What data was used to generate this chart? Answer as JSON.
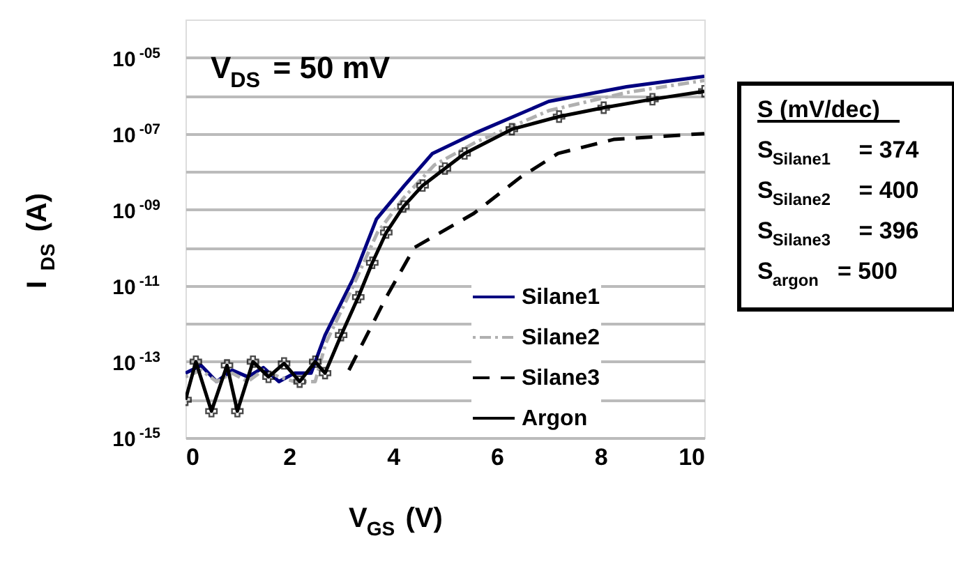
{
  "chart_data": {
    "type": "line",
    "xlabel": "V$_{GS}$ (V)",
    "ylabel": "I$_{DS}$ (A)",
    "log": "y",
    "grid": "y",
    "legend": "bottom right",
    "xlim": [
      0,
      10
    ],
    "xticks": [
      0,
      2,
      4,
      6,
      8,
      10
    ],
    "ylim": [
      1e-15,
      0.0001
    ],
    "yticks": [
      {
        "value": 1e-15,
        "label": "10$^{-15}$"
      },
      {
        "value": 1e-14,
        "label": null
      },
      {
        "value": 1e-13,
        "label": "10$^{-13}$"
      },
      {
        "value": 1e-12,
        "label": null
      },
      {
        "value": 1e-11,
        "label": "10$^{-11}$"
      },
      {
        "value": 1e-10,
        "label": null
      },
      {
        "value": 1e-09,
        "label": "10$^{-09}$"
      },
      {
        "value": 1e-08,
        "label": null
      },
      {
        "value": 1e-07,
        "label": "10$^{-07}$"
      },
      {
        "value": 1e-06,
        "label": null
      },
      {
        "value": 1e-05,
        "label": "10$^{-05}$"
      }
    ],
    "series": [
      {
        "name": "Silane1",
        "color": "#000080",
        "line_style": "solid",
        "marker": "none",
        "x": [
          0,
          0.3,
          0.6,
          0.9,
          1.2,
          1.5,
          1.8,
          2.1,
          2.42,
          2.69,
          3.23,
          3.68,
          4.22,
          4.76,
          5.56,
          7.0,
          8.5,
          10
        ],
        "values": [
          5e-14,
          8e-14,
          3e-14,
          6e-14,
          4e-14,
          7e-14,
          3e-14,
          5e-14,
          5e-14,
          5e-13,
          1.5e-11,
          5.6e-10,
          4.3e-09,
          3e-08,
          1e-07,
          7e-07,
          1.7e-06,
          3.2e-06
        ]
      },
      {
        "name": "Silane2",
        "color": "#b0b0b0",
        "line_style": "dotted",
        "marker": "none",
        "x": [
          0,
          0.3,
          0.6,
          0.9,
          1.2,
          1.5,
          1.8,
          2.1,
          2.5,
          2.7,
          3.2,
          3.7,
          4.2,
          4.8,
          5.6,
          7.0,
          8.5,
          10
        ],
        "values": [
          4e-14,
          6e-14,
          3e-14,
          5e-14,
          3e-14,
          6e-14,
          4e-14,
          3e-14,
          3e-14,
          3e-13,
          8e-12,
          2.5e-10,
          2e-09,
          1.5e-08,
          6e-08,
          4e-07,
          1.2e-06,
          2.5e-06
        ]
      },
      {
        "name": "Silane3",
        "color": "#000000",
        "line_style": "dashed",
        "marker": "none",
        "x": [
          3.15,
          3.87,
          4.41,
          5.56,
          6.45,
          7.18,
          8.25,
          10
        ],
        "values": [
          6e-14,
          5e-12,
          1e-10,
          8e-10,
          7e-09,
          3e-08,
          7e-08,
          1e-07
        ]
      },
      {
        "name": "Argon",
        "color": "#000000",
        "line_style": "solid",
        "marker": "cross",
        "x": [
          0,
          0.2,
          0.5,
          0.8,
          1.0,
          1.3,
          1.6,
          1.9,
          2.2,
          2.5,
          2.69,
          3.0,
          3.33,
          3.6,
          3.87,
          4.2,
          4.57,
          5.0,
          5.38,
          6.29,
          7.2,
          8.06,
          9.0,
          10
        ],
        "values": [
          1e-14,
          1e-13,
          5e-15,
          8e-14,
          5e-15,
          1e-13,
          4e-14,
          9e-14,
          3e-14,
          1e-13,
          5e-14,
          5e-13,
          5e-12,
          4e-11,
          2.5e-10,
          1.2e-09,
          4.3e-09,
          1.2e-08,
          3e-08,
          1.3e-07,
          2.8e-07,
          4.8e-07,
          8e-07,
          1.3e-06
        ]
      }
    ],
    "annotations": [
      "V$_{DS}$ = 50 mV",
      "S (mV/dec)",
      "S$_{Silane1}$ = 374",
      "S$_{Silane2}$ = 400",
      "S$_{Silane3}$ = 396",
      "S$_{argon}$ = 500"
    ]
  }
}
